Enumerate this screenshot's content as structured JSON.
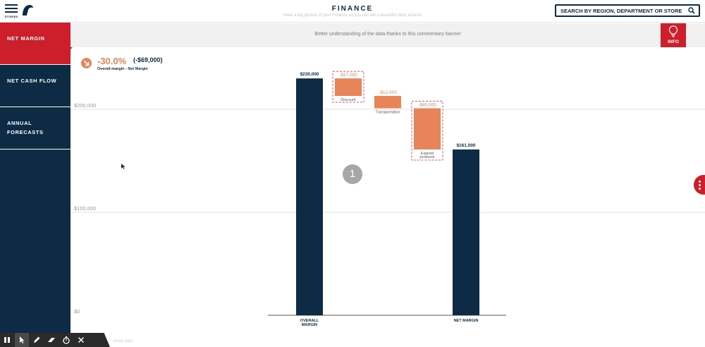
{
  "header": {
    "menu_label": "STORIES",
    "title": "FINANCE",
    "subtitle": "Have a big picture of your Finance so you can tell a beautiful story around.",
    "search_placeholder": "SEARCH BY REGION, DEPARTMENT OR STORE"
  },
  "sidebar": {
    "items": [
      {
        "label": "NET MARGIN",
        "active": true
      },
      {
        "label": "NET CASH FLOW",
        "active": false
      },
      {
        "label": "ANNUAL",
        "label2": "FORECASTS",
        "active": false
      }
    ]
  },
  "banner": {
    "text": "Better understanding of the data thanks to this commentary banner",
    "info_label": "INFO"
  },
  "kpi": {
    "value": "-30.0%",
    "amount": "(-$69,000)",
    "caption": "Overall margin - Net Margin"
  },
  "chart_data": {
    "type": "waterfall",
    "yticks": [
      {
        "value": 0,
        "label": "$0"
      },
      {
        "value": 100000,
        "label": "$100,000"
      },
      {
        "value": 200000,
        "label": "$200,000"
      }
    ],
    "ylim": [
      0,
      230000
    ],
    "bars": [
      {
        "kind": "total",
        "start": 0,
        "end": 230000,
        "label": "$230,000",
        "category": "OVERALL",
        "category2": "MARGIN"
      },
      {
        "kind": "delta",
        "start": 230000,
        "end": 213000,
        "label": "-$17,000",
        "category": "Discount",
        "highlighted": true
      },
      {
        "kind": "delta",
        "start": 213000,
        "end": 201000,
        "label": "-$12,000",
        "category": "Transportation",
        "highlighted": false
      },
      {
        "kind": "delta",
        "start": 201000,
        "end": 161000,
        "label": "-$40,000",
        "category": "Expired",
        "category2": "products",
        "highlighted": true
      },
      {
        "kind": "total",
        "start": 0,
        "end": 161000,
        "label": "$161,000",
        "category": "NET MARGIN"
      }
    ],
    "colors": {
      "total": "#0d2b45",
      "delta": "#e8845a",
      "highlight": "#e05a63"
    }
  },
  "step_badge": "1",
  "footer_text": "about data",
  "colors": {
    "navy": "#0d2b45",
    "red": "#cc1e2b",
    "orange": "#e8845a"
  }
}
